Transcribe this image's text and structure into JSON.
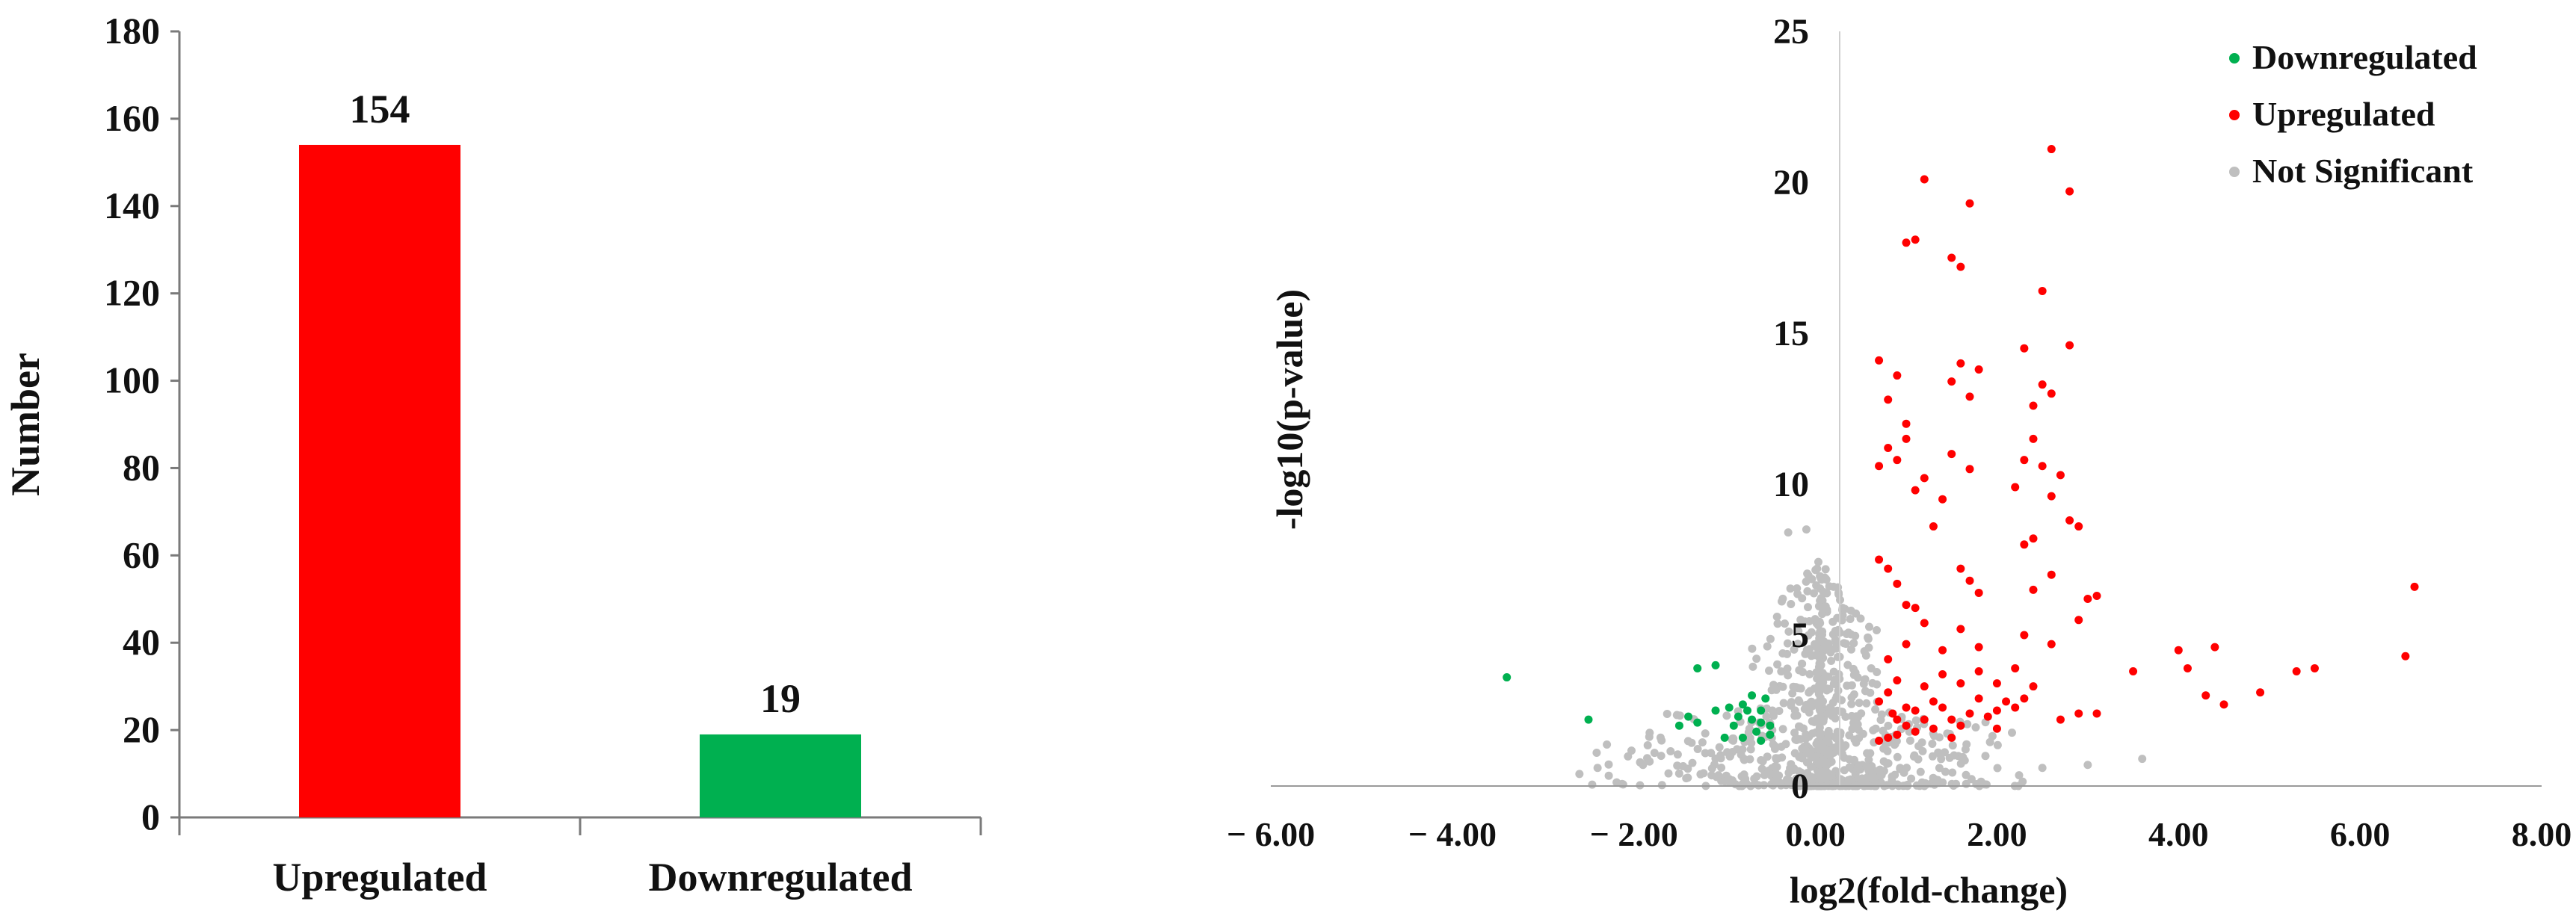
{
  "chart_data": [
    {
      "type": "bar",
      "title": "",
      "xlabel": "",
      "ylabel": "Number",
      "ylim": [
        0,
        180
      ],
      "yticks": [
        0,
        20,
        40,
        60,
        80,
        100,
        120,
        140,
        160,
        180
      ],
      "categories": [
        "Upregulated",
        "Downregulated"
      ],
      "values": [
        154,
        19
      ],
      "value_labels": [
        "154",
        "19"
      ],
      "colors": [
        "#ff0000",
        "#00b050"
      ],
      "grid": false
    },
    {
      "type": "scatter",
      "title": "",
      "xlabel": "log2(fold-change)",
      "ylabel": "-log10(p-value)",
      "xlim": [
        -6,
        8
      ],
      "ylim": [
        0,
        25
      ],
      "xticks": [
        -6,
        -4,
        -2,
        0,
        2,
        4,
        6,
        8
      ],
      "xtick_labels": [
        "− 6.00",
        "− 4.00",
        "− 2.00",
        "0.00",
        "2.00",
        "4.00",
        "6.00",
        "8.00"
      ],
      "yticks": [
        0,
        5,
        10,
        15,
        20,
        25
      ],
      "grid": false,
      "legend": {
        "position": "top-right"
      },
      "series": [
        {
          "name": "Downregulated",
          "color": "#00b050",
          "points": [
            [
              -3.4,
              3.6
            ],
            [
              -2.5,
              2.2
            ],
            [
              -1.5,
              2.0
            ],
            [
              -1.4,
              2.3
            ],
            [
              -1.3,
              2.1
            ],
            [
              -1.1,
              2.5
            ],
            [
              -1.1,
              4.0
            ],
            [
              -1.3,
              3.9
            ],
            [
              -1.0,
              1.6
            ],
            [
              -0.9,
              2.0
            ],
            [
              -0.8,
              2.7
            ],
            [
              -0.8,
              1.6
            ],
            [
              -0.7,
              2.2
            ],
            [
              -0.7,
              3.0
            ],
            [
              -0.6,
              2.5
            ],
            [
              -0.6,
              1.5
            ],
            [
              -0.5,
              2.0
            ],
            [
              -0.5,
              1.7
            ],
            [
              -0.55,
              2.9
            ],
            [
              -0.75,
              2.5
            ],
            [
              -0.85,
              2.3
            ],
            [
              -0.65,
              1.8
            ],
            [
              -0.95,
              2.6
            ],
            [
              -0.6,
              2.1
            ]
          ]
        },
        {
          "name": "Upregulated",
          "color": "#ff0000",
          "points": [
            [
              0.7,
              1.5
            ],
            [
              0.7,
              2.8
            ],
            [
              0.8,
              1.6
            ],
            [
              0.85,
              2.4
            ],
            [
              0.9,
              1.7
            ],
            [
              1.0,
              2.0
            ],
            [
              1.1,
              1.8
            ],
            [
              1.0,
              2.6
            ],
            [
              1.2,
              2.2
            ],
            [
              1.3,
              1.9
            ],
            [
              1.4,
              2.6
            ],
            [
              1.5,
              1.6
            ],
            [
              1.6,
              2.0
            ],
            [
              1.7,
              2.4
            ],
            [
              1.8,
              2.9
            ],
            [
              1.9,
              2.3
            ],
            [
              2.0,
              2.5
            ],
            [
              2.1,
              2.8
            ],
            [
              2.2,
              2.6
            ],
            [
              2.3,
              2.9
            ],
            [
              0.8,
              3.1
            ],
            [
              0.9,
              3.5
            ],
            [
              1.2,
              3.3
            ],
            [
              1.4,
              3.7
            ],
            [
              1.6,
              3.4
            ],
            [
              1.8,
              3.8
            ],
            [
              2.0,
              3.4
            ],
            [
              2.2,
              3.9
            ],
            [
              2.4,
              3.3
            ],
            [
              0.8,
              4.2
            ],
            [
              1.0,
              4.7
            ],
            [
              1.2,
              5.4
            ],
            [
              1.4,
              4.5
            ],
            [
              1.6,
              5.2
            ],
            [
              1.8,
              4.6
            ],
            [
              2.3,
              5.0
            ],
            [
              2.6,
              4.7
            ],
            [
              0.7,
              7.5
            ],
            [
              0.8,
              7.2
            ],
            [
              0.9,
              6.7
            ],
            [
              1.0,
              6.0
            ],
            [
              1.1,
              5.9
            ],
            [
              1.6,
              7.2
            ],
            [
              1.7,
              6.8
            ],
            [
              1.8,
              6.4
            ],
            [
              2.4,
              6.5
            ],
            [
              2.6,
              7.0
            ],
            [
              2.9,
              5.5
            ],
            [
              3.0,
              6.2
            ],
            [
              3.1,
              6.3
            ],
            [
              0.7,
              10.6
            ],
            [
              0.8,
              11.2
            ],
            [
              0.9,
              10.8
            ],
            [
              1.0,
              11.5
            ],
            [
              1.1,
              9.8
            ],
            [
              1.2,
              10.2
            ],
            [
              1.3,
              8.6
            ],
            [
              1.4,
              9.5
            ],
            [
              1.5,
              11.0
            ],
            [
              1.7,
              10.5
            ],
            [
              2.2,
              9.9
            ],
            [
              2.3,
              10.8
            ],
            [
              2.4,
              11.5
            ],
            [
              2.5,
              10.6
            ],
            [
              2.6,
              9.6
            ],
            [
              2.7,
              10.3
            ],
            [
              2.8,
              8.8
            ],
            [
              2.9,
              8.6
            ],
            [
              2.4,
              8.2
            ],
            [
              2.3,
              8.0
            ],
            [
              0.7,
              14.1
            ],
            [
              0.9,
              13.6
            ],
            [
              0.8,
              12.8
            ],
            [
              1.0,
              12.0
            ],
            [
              1.5,
              13.4
            ],
            [
              1.6,
              14.0
            ],
            [
              1.7,
              12.9
            ],
            [
              1.8,
              13.8
            ],
            [
              2.3,
              14.5
            ],
            [
              2.5,
              13.3
            ],
            [
              2.6,
              13.0
            ],
            [
              2.8,
              14.6
            ],
            [
              2.4,
              12.6
            ],
            [
              1.0,
              18.0
            ],
            [
              1.1,
              18.1
            ],
            [
              1.2,
              20.1
            ],
            [
              1.5,
              17.5
            ],
            [
              1.6,
              17.2
            ],
            [
              1.7,
              19.3
            ],
            [
              2.6,
              21.1
            ],
            [
              2.8,
              19.7
            ],
            [
              2.5,
              16.4
            ],
            [
              3.5,
              3.8
            ],
            [
              4.0,
              4.5
            ],
            [
              4.1,
              3.9
            ],
            [
              4.3,
              3.0
            ],
            [
              4.4,
              4.6
            ],
            [
              4.5,
              2.7
            ],
            [
              4.9,
              3.1
            ],
            [
              5.3,
              3.8
            ],
            [
              5.5,
              3.9
            ],
            [
              6.5,
              4.3
            ],
            [
              6.6,
              6.6
            ],
            [
              2.9,
              2.4
            ],
            [
              3.1,
              2.4
            ],
            [
              2.7,
              2.2
            ],
            [
              2.0,
              1.9
            ],
            [
              1.5,
              2.2
            ],
            [
              1.1,
              2.5
            ],
            [
              0.9,
              2.2
            ],
            [
              1.3,
              2.8
            ]
          ]
        },
        {
          "name": "Not Significant",
          "color": "#bfbfbf",
          "points": []
        }
      ]
    }
  ]
}
